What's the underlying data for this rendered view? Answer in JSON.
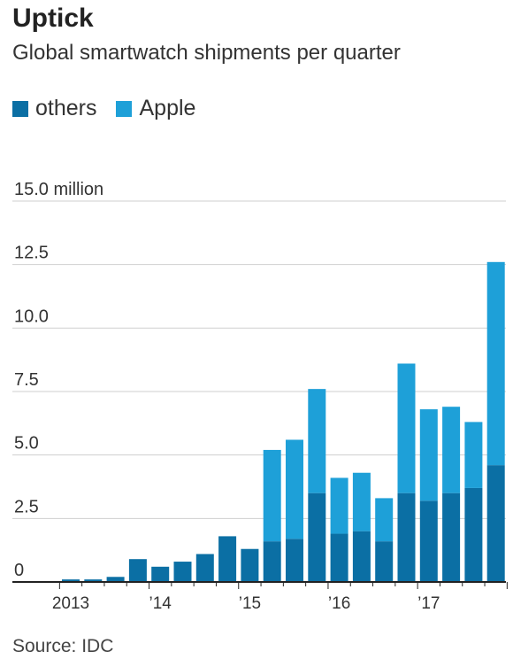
{
  "title": "Uptick",
  "subtitle": "Global smartwatch shipments per quarter",
  "source": "Source: IDC",
  "colors": {
    "others": "#0b6fa4",
    "apple": "#1ea0d8",
    "grid": "#cfcfcf",
    "axis": "#222222"
  },
  "chart_data": {
    "type": "bar",
    "stacked": true,
    "unit": "million",
    "ylim": [
      0,
      15
    ],
    "yticks": [
      {
        "value": 15,
        "label": "15.0 million"
      },
      {
        "value": 12.5,
        "label": "12.5"
      },
      {
        "value": 10,
        "label": "10.0"
      },
      {
        "value": 7.5,
        "label": "7.5"
      },
      {
        "value": 5,
        "label": "5.0"
      },
      {
        "value": 2.5,
        "label": "2.5"
      },
      {
        "value": 0,
        "label": "0"
      }
    ],
    "categories": [
      "2013 Q1",
      "2013 Q2",
      "2013 Q3",
      "2013 Q4",
      "2014 Q1",
      "2014 Q2",
      "2014 Q3",
      "2014 Q4",
      "2015 Q1",
      "2015 Q2",
      "2015 Q3",
      "2015 Q4",
      "2016 Q1",
      "2016 Q2",
      "2016 Q3",
      "2016 Q4",
      "2017 Q1",
      "2017 Q2",
      "2017 Q3",
      "2017 Q4"
    ],
    "year_labels": [
      {
        "label": "2013",
        "quarter_index": 0
      },
      {
        "label": "’14",
        "quarter_index": 4
      },
      {
        "label": "’15",
        "quarter_index": 8
      },
      {
        "label": "’16",
        "quarter_index": 12
      },
      {
        "label": "’17",
        "quarter_index": 16
      }
    ],
    "series": [
      {
        "name": "others",
        "values": [
          0.1,
          0.1,
          0.2,
          0.9,
          0.6,
          0.8,
          1.1,
          1.8,
          1.3,
          1.6,
          1.7,
          3.5,
          1.9,
          2.0,
          1.6,
          3.5,
          3.2,
          3.5,
          3.7,
          4.6
        ]
      },
      {
        "name": "Apple",
        "values": [
          0,
          0,
          0,
          0,
          0,
          0,
          0,
          0,
          0,
          3.6,
          3.9,
          4.1,
          2.2,
          2.3,
          1.7,
          5.1,
          3.6,
          3.4,
          2.6,
          8.0
        ]
      }
    ]
  }
}
